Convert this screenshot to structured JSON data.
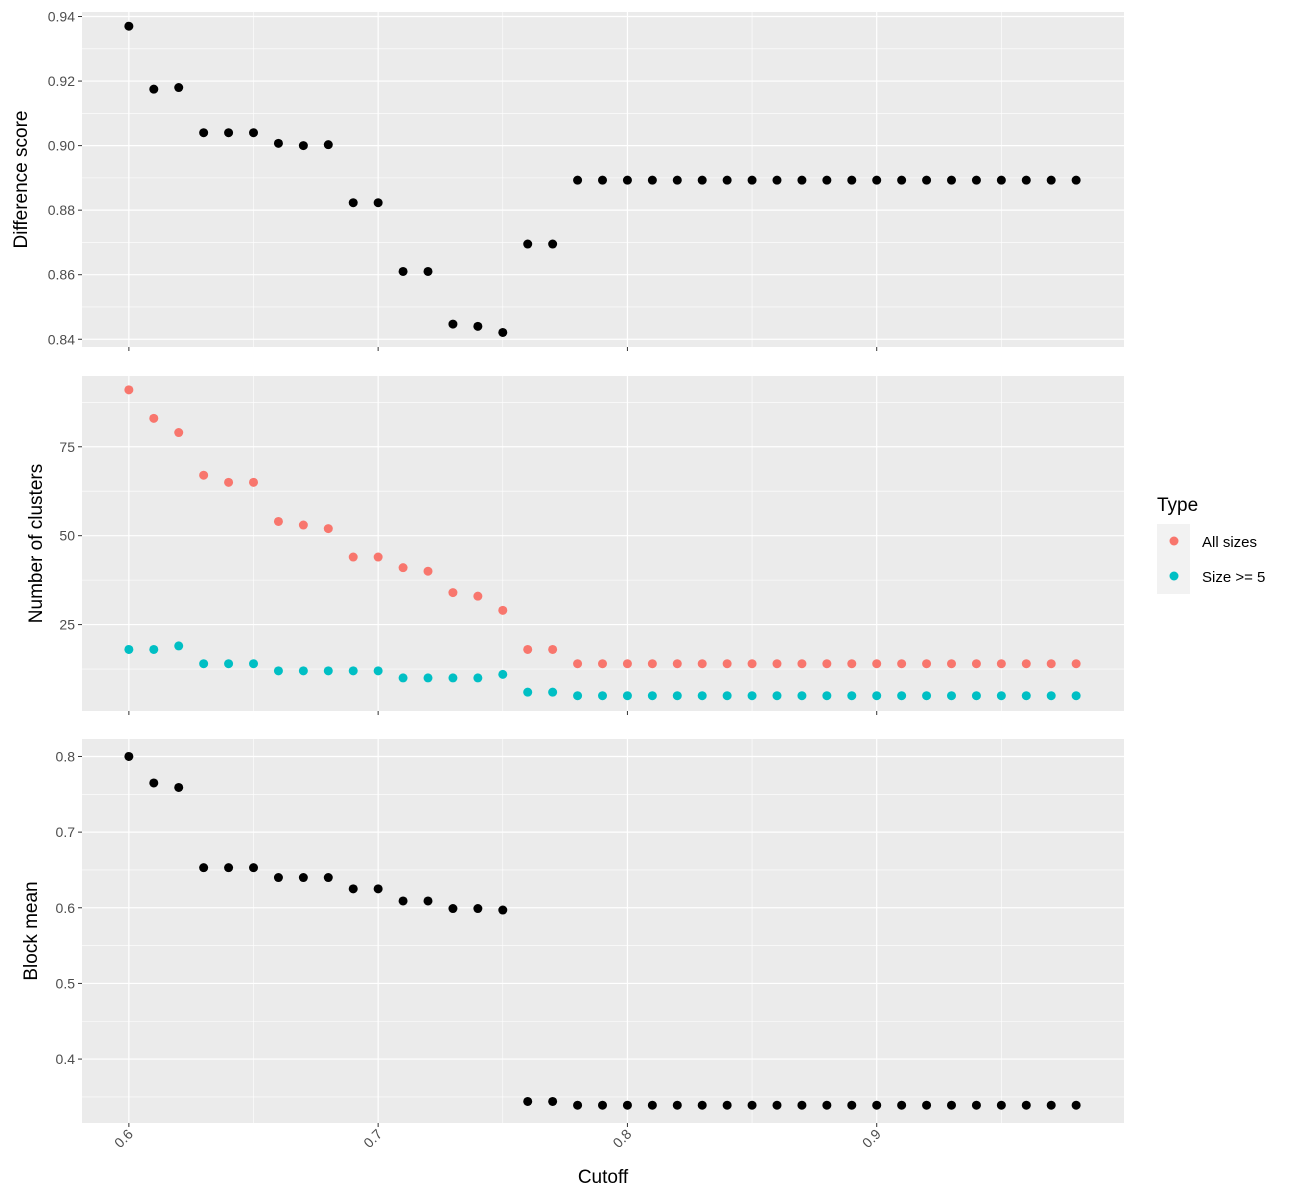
{
  "chart_data": {
    "type": "scatter",
    "xlabel": "Cutoff",
    "x": [
      0.6,
      0.61,
      0.62,
      0.63,
      0.64,
      0.65,
      0.66,
      0.67,
      0.68,
      0.69,
      0.7,
      0.71,
      0.72,
      0.73,
      0.74,
      0.75,
      0.76,
      0.77,
      0.78,
      0.79,
      0.8,
      0.81,
      0.82,
      0.83,
      0.84,
      0.85,
      0.86,
      0.87,
      0.88,
      0.89,
      0.9,
      0.91,
      0.92,
      0.93,
      0.94,
      0.95,
      0.96,
      0.97,
      0.98
    ],
    "xlim": [
      0.5812,
      0.9992
    ],
    "xticks": [
      0.6,
      0.7,
      0.8,
      0.9
    ],
    "xtick_labels": [
      "0.6",
      "0.7",
      "0.8",
      "0.9"
    ],
    "grid": true,
    "legend": {
      "title": "Type",
      "placement": "right",
      "entries": [
        {
          "label": "All sizes",
          "color": "#F8766D"
        },
        {
          "label": "Size >= 5",
          "color": "#00BFC4"
        }
      ]
    },
    "panels": [
      {
        "ylabel": "Difference score",
        "ylim": [
          0.8376,
          0.9414
        ],
        "yticks": [
          0.84,
          0.86,
          0.88,
          0.9,
          0.92,
          0.94
        ],
        "ytick_labels": [
          "0.84",
          "0.86",
          "0.88",
          "0.90",
          "0.92",
          "0.94"
        ],
        "series": [
          {
            "name": "Difference score",
            "color": "#000000",
            "values": [
              0.937,
              0.9175,
              0.918,
              0.904,
              0.904,
              0.904,
              0.9007,
              0.9,
              0.9003,
              0.8823,
              0.8823,
              0.861,
              0.861,
              0.8447,
              0.844,
              0.8421,
              0.8695,
              0.8695,
              0.8893,
              0.8893,
              0.8893,
              0.8893,
              0.8893,
              0.8893,
              0.8893,
              0.8893,
              0.8893,
              0.8893,
              0.8893,
              0.8893,
              0.8893,
              0.8893,
              0.8893,
              0.8893,
              0.8893,
              0.8893,
              0.8893,
              0.8893,
              0.8893
            ]
          }
        ]
      },
      {
        "ylabel": "Number of clusters",
        "ylim": [
          0.7,
          94.9
        ],
        "yticks": [
          25,
          50,
          75
        ],
        "ytick_labels": [
          "25",
          "50",
          "75"
        ],
        "series": [
          {
            "name": "All sizes",
            "color": "#F8766D",
            "values": [
              91,
              83,
              79,
              67,
              65,
              65,
              54,
              53,
              52,
              44,
              44,
              41,
              40,
              34,
              33,
              29,
              18,
              18,
              14,
              14,
              14,
              14,
              14,
              14,
              14,
              14,
              14,
              14,
              14,
              14,
              14,
              14,
              14,
              14,
              14,
              14,
              14,
              14,
              14
            ]
          },
          {
            "name": "Size >= 5",
            "color": "#00BFC4",
            "values": [
              18,
              18,
              19,
              14,
              14,
              14,
              12,
              12,
              12,
              12,
              12,
              10,
              10,
              10,
              10,
              11,
              6,
              6,
              5,
              5,
              5,
              5,
              5,
              5,
              5,
              5,
              5,
              5,
              5,
              5,
              5,
              5,
              5,
              5,
              5,
              5,
              5,
              5,
              5
            ]
          }
        ]
      },
      {
        "ylabel": "Block mean",
        "ylim": [
          0.3155,
          0.8231
        ],
        "yticks": [
          0.4,
          0.5,
          0.6,
          0.7,
          0.8
        ],
        "ytick_labels": [
          "0.4",
          "0.5",
          "0.6",
          "0.7",
          "0.8"
        ],
        "series": [
          {
            "name": "Block mean",
            "color": "#000000",
            "values": [
              0.8,
              0.765,
              0.759,
              0.653,
              0.653,
              0.653,
              0.64,
              0.64,
              0.64,
              0.625,
              0.625,
              0.609,
              0.609,
              0.599,
              0.599,
              0.597,
              0.344,
              0.344,
              0.339,
              0.339,
              0.339,
              0.339,
              0.339,
              0.339,
              0.339,
              0.339,
              0.339,
              0.339,
              0.339,
              0.339,
              0.339,
              0.339,
              0.339,
              0.339,
              0.339,
              0.339,
              0.339,
              0.339,
              0.339
            ]
          }
        ]
      }
    ]
  }
}
